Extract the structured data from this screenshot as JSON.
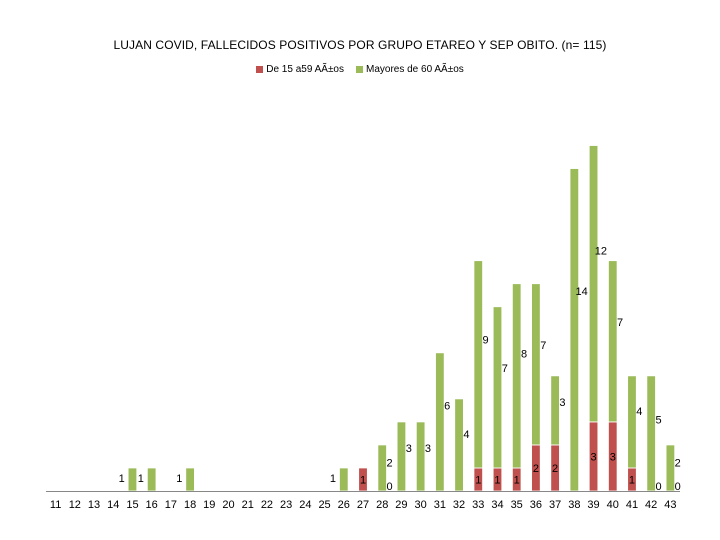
{
  "chart_data": {
    "type": "bar",
    "stacked": true,
    "title": "LUJAN COVID, FALLECIDOS POSITIVOS POR GRUPO ETAREO Y SEP OBITO. (n= 115)",
    "xlabel": "",
    "ylabel": "",
    "ylim": [
      0,
      15.5
    ],
    "legend_position": "top",
    "categories": [
      "11",
      "12",
      "13",
      "14",
      "15",
      "16",
      "17",
      "18",
      "19",
      "20",
      "21",
      "22",
      "23",
      "24",
      "25",
      "26",
      "27",
      "28",
      "29",
      "30",
      "31",
      "32",
      "33",
      "34",
      "35",
      "36",
      "37",
      "38",
      "39",
      "40",
      "41",
      "42",
      "43"
    ],
    "series": [
      {
        "name": "De 15 a59 AÃ±os",
        "color": "#c0504d",
        "values": [
          0,
          0,
          0,
          0,
          0,
          0,
          0,
          0,
          0,
          0,
          0,
          0,
          0,
          0,
          0,
          0,
          1,
          0,
          0,
          0,
          0,
          0,
          1,
          1,
          1,
          2,
          2,
          0,
          3,
          3,
          1,
          0,
          0
        ],
        "labels": [
          "",
          "",
          "",
          "",
          "",
          "",
          "",
          "",
          "",
          "",
          "",
          "",
          "",
          "",
          "",
          "",
          "1",
          "0",
          "",
          "",
          "",
          "",
          "1",
          "1",
          "1",
          "2",
          "2",
          "",
          "3",
          "3",
          "1",
          "0",
          "0"
        ]
      },
      {
        "name": "Mayores de 60 AÃ±os",
        "color": "#9bbb59",
        "values": [
          0,
          0,
          0,
          0,
          1,
          1,
          0,
          1,
          0,
          0,
          0,
          0,
          0,
          0,
          0,
          1,
          0,
          2,
          3,
          3,
          6,
          4,
          9,
          7,
          8,
          7,
          3,
          14,
          12,
          7,
          4,
          5,
          2
        ],
        "labels": [
          "",
          "",
          "",
          "",
          "1",
          "1",
          "",
          "1",
          "",
          "",
          "",
          "",
          "",
          "",
          "",
          "1",
          "",
          "2",
          "3",
          "3",
          "6",
          "4",
          "9",
          "7",
          "8",
          "7",
          "3",
          "14",
          "12",
          "7",
          "4",
          "5",
          "2"
        ]
      }
    ]
  }
}
